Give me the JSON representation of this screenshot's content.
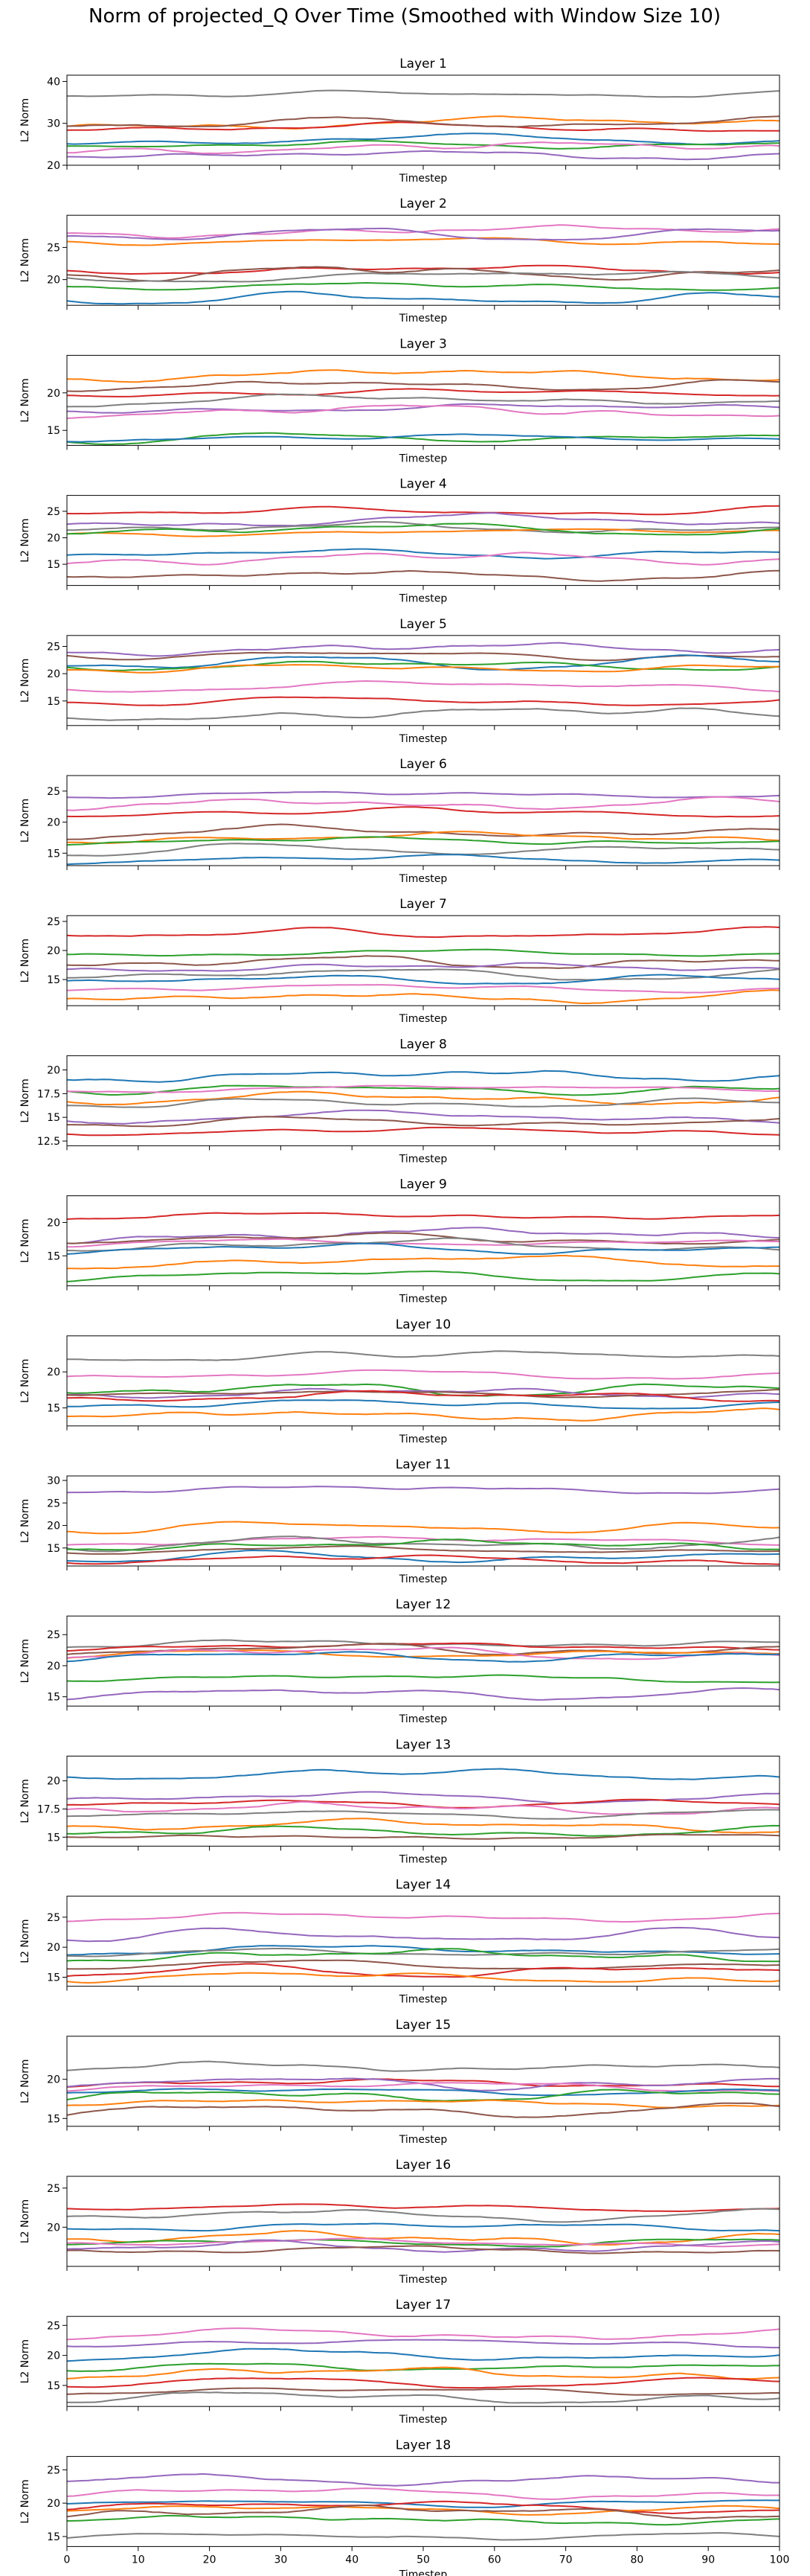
{
  "figure": {
    "title": "Norm of projected_Q Over Time (Smoothed with Window Size 10)"
  },
  "palette": {
    "blue": "#1f77b4",
    "orange": "#ff7f0e",
    "green": "#2ca02c",
    "red": "#d62728",
    "purple": "#9467bd",
    "brown": "#8c564b",
    "pink": "#e377c2",
    "gray": "#7f7f7f"
  },
  "chart_data": {
    "type": "line",
    "x_range": [
      0,
      100
    ],
    "x_ticks": [
      0,
      10,
      20,
      30,
      40,
      50,
      60,
      70,
      80,
      90,
      100
    ],
    "xlabel": "Timestep",
    "ylabel": "L2 Norm",
    "grid": false,
    "layers": [
      {
        "title": "Layer 1",
        "yticks": [
          20,
          30,
          40
        ],
        "ylim": [
          20,
          41.5
        ],
        "series_colors": [
          "gray",
          "orange",
          "red",
          "brown",
          "blue",
          "green",
          "pink",
          "purple"
        ],
        "series_levels": [
          37,
          30,
          29,
          30,
          26,
          25,
          24,
          22.5
        ]
      },
      {
        "title": "Layer 2",
        "yticks": [
          20,
          25
        ],
        "ylim": [
          16,
          30
        ],
        "series_colors": [
          "pink",
          "orange",
          "purple",
          "red",
          "brown",
          "gray",
          "green",
          "blue"
        ],
        "series_levels": [
          27.5,
          26,
          27,
          21.5,
          21,
          20.5,
          19,
          17
        ]
      },
      {
        "title": "Layer 3",
        "yticks": [
          15,
          20
        ],
        "ylim": [
          13,
          25
        ],
        "series_colors": [
          "orange",
          "brown",
          "red",
          "gray",
          "purple",
          "pink",
          "green",
          "blue"
        ],
        "series_levels": [
          22.5,
          21,
          20,
          19,
          18,
          17.5,
          14,
          14
        ]
      },
      {
        "title": "Layer 4",
        "yticks": [
          15,
          20,
          25
        ],
        "ylim": [
          11,
          28
        ],
        "series_colors": [
          "red",
          "purple",
          "gray",
          "orange",
          "green",
          "blue",
          "pink",
          "brown"
        ],
        "series_levels": [
          25,
          23,
          22,
          21,
          21.5,
          17,
          16,
          13
        ]
      },
      {
        "title": "Layer 5",
        "yticks": [
          15,
          20,
          25
        ],
        "ylim": [
          10.5,
          27
        ],
        "series_colors": [
          "purple",
          "brown",
          "blue",
          "green",
          "orange",
          "pink",
          "red",
          "gray"
        ],
        "series_levels": [
          24.5,
          23.5,
          22,
          21.5,
          21,
          17.5,
          15,
          12.5
        ]
      },
      {
        "title": "Layer 6",
        "yticks": [
          15,
          20,
          25
        ],
        "ylim": [
          13,
          27.5
        ],
        "series_colors": [
          "purple",
          "pink",
          "red",
          "brown",
          "orange",
          "green",
          "gray",
          "blue"
        ],
        "series_levels": [
          24.5,
          23,
          21.5,
          18.5,
          17.5,
          17,
          15.5,
          14
        ]
      },
      {
        "title": "Layer 7",
        "yticks": [
          15,
          20,
          25
        ],
        "ylim": [
          10.5,
          26
        ],
        "series_colors": [
          "red",
          "green",
          "brown",
          "purple",
          "gray",
          "blue",
          "pink",
          "orange"
        ],
        "series_levels": [
          23,
          19.5,
          18,
          17,
          16,
          15,
          13.5,
          12
        ]
      },
      {
        "title": "Layer 8",
        "yticks": [
          12.5,
          15.0,
          17.5,
          20.0
        ],
        "ylim": [
          12,
          21.5
        ],
        "series_colors": [
          "blue",
          "green",
          "pink",
          "orange",
          "gray",
          "purple",
          "brown",
          "red"
        ],
        "series_levels": [
          19.5,
          18,
          18,
          17,
          16.5,
          15,
          14.5,
          13.5
        ]
      },
      {
        "title": "Layer 9",
        "yticks": [
          15,
          20
        ],
        "ylim": [
          10.5,
          24
        ],
        "series_colors": [
          "red",
          "purple",
          "brown",
          "pink",
          "gray",
          "blue",
          "orange",
          "green"
        ],
        "series_levels": [
          21,
          18,
          17.5,
          17,
          16.5,
          16,
          14,
          12
        ]
      },
      {
        "title": "Layer 10",
        "yticks": [
          15,
          20
        ],
        "ylim": [
          12.5,
          25
        ],
        "series_colors": [
          "gray",
          "pink",
          "green",
          "purple",
          "brown",
          "red",
          "blue",
          "orange"
        ],
        "series_levels": [
          22,
          19.5,
          17.5,
          17,
          17,
          16.5,
          15.5,
          14
        ]
      },
      {
        "title": "Layer 11",
        "yticks": [
          15,
          20,
          25,
          30
        ],
        "ylim": [
          11,
          31
        ],
        "series_colors": [
          "purple",
          "orange",
          "pink",
          "gray",
          "green",
          "brown",
          "blue",
          "red"
        ],
        "series_levels": [
          28,
          19.5,
          16.5,
          16,
          15.5,
          14.5,
          13,
          12.5
        ]
      },
      {
        "title": "Layer 12",
        "yticks": [
          15,
          20,
          25
        ],
        "ylim": [
          13.5,
          28
        ],
        "series_colors": [
          "gray",
          "red",
          "brown",
          "orange",
          "pink",
          "blue",
          "green",
          "purple"
        ],
        "series_levels": [
          23.5,
          23,
          22.5,
          22,
          22,
          21.5,
          18,
          15.5
        ]
      },
      {
        "title": "Layer 13",
        "yticks": [
          15.0,
          17.5,
          20.0
        ],
        "ylim": [
          14.2,
          22.2
        ],
        "series_colors": [
          "blue",
          "purple",
          "red",
          "pink",
          "gray",
          "orange",
          "green",
          "brown"
        ],
        "series_levels": [
          20.5,
          18.5,
          18,
          17.5,
          17,
          16,
          15.5,
          15
        ]
      },
      {
        "title": "Layer 14",
        "yticks": [
          15,
          20,
          25
        ],
        "ylim": [
          13.5,
          28.5
        ],
        "series_colors": [
          "pink",
          "purple",
          "blue",
          "gray",
          "green",
          "brown",
          "red",
          "orange"
        ],
        "series_levels": [
          25,
          22,
          19.5,
          19,
          18.5,
          17,
          16,
          15
        ]
      },
      {
        "title": "Layer 15",
        "yticks": [
          15,
          20
        ],
        "ylim": [
          14,
          25.5
        ],
        "series_colors": [
          "gray",
          "red",
          "purple",
          "pink",
          "blue",
          "green",
          "orange",
          "brown"
        ],
        "series_levels": [
          21.5,
          19.5,
          19.5,
          19,
          18.5,
          18,
          17,
          16
        ]
      },
      {
        "title": "Layer 16",
        "yticks": [
          20,
          25
        ],
        "ylim": [
          15,
          26.5
        ],
        "series_colors": [
          "red",
          "gray",
          "blue",
          "orange",
          "green",
          "pink",
          "purple",
          "brown"
        ],
        "series_levels": [
          22.5,
          21.5,
          20,
          18.5,
          18,
          18,
          17.5,
          17
        ]
      },
      {
        "title": "Layer 17",
        "yticks": [
          15,
          20,
          25
        ],
        "ylim": [
          11.5,
          26.5
        ],
        "series_colors": [
          "pink",
          "purple",
          "blue",
          "green",
          "orange",
          "red",
          "brown",
          "gray"
        ],
        "series_levels": [
          23.5,
          22,
          20,
          18,
          17,
          15.5,
          14,
          13
        ]
      },
      {
        "title": "Layer 18",
        "yticks": [
          15,
          20,
          25
        ],
        "ylim": [
          13.5,
          27
        ],
        "series_colors": [
          "purple",
          "pink",
          "blue",
          "red",
          "orange",
          "brown",
          "green",
          "gray"
        ],
        "series_levels": [
          23.5,
          21.5,
          20,
          19.5,
          19,
          18.5,
          17.5,
          15
        ]
      }
    ]
  }
}
